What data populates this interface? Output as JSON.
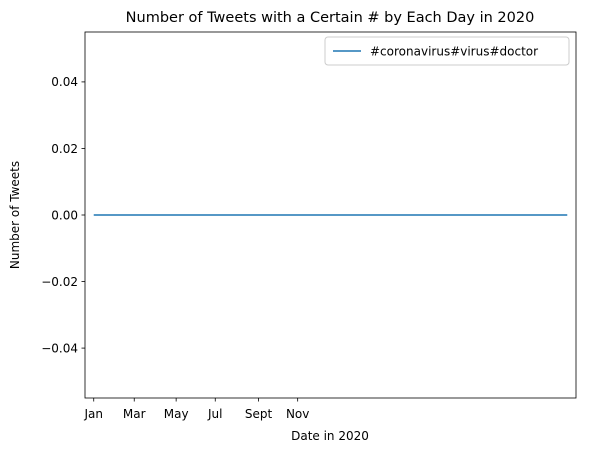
{
  "chart_data": {
    "type": "line",
    "title": "Number of Tweets with a Certain # by Each Day in 2020",
    "xlabel": "Date in 2020",
    "ylabel": "Number of Tweets",
    "xlim": [
      -6.25,
      345.25
    ],
    "ylim": [
      -0.055,
      0.055
    ],
    "x_ticks": [
      {
        "value": 0,
        "label": "Jan"
      },
      {
        "value": 29,
        "label": "Mar"
      },
      {
        "value": 59,
        "label": "May"
      },
      {
        "value": 87,
        "label": "Jul"
      },
      {
        "value": 118,
        "label": "Sept"
      },
      {
        "value": 146,
        "label": "Nov"
      }
    ],
    "y_ticks": [
      {
        "value": -0.04,
        "label": "−0.04"
      },
      {
        "value": -0.02,
        "label": "−0.02"
      },
      {
        "value": 0.0,
        "label": "0.00"
      },
      {
        "value": 0.02,
        "label": "0.02"
      },
      {
        "value": 0.04,
        "label": "0.04"
      }
    ],
    "legend_position": "top-right",
    "grid": false,
    "series": [
      {
        "name": "#coronavirus#virus#doctor",
        "color": "#1f77b4",
        "x": [
          0,
          339
        ],
        "y": [
          0,
          0
        ]
      }
    ]
  }
}
